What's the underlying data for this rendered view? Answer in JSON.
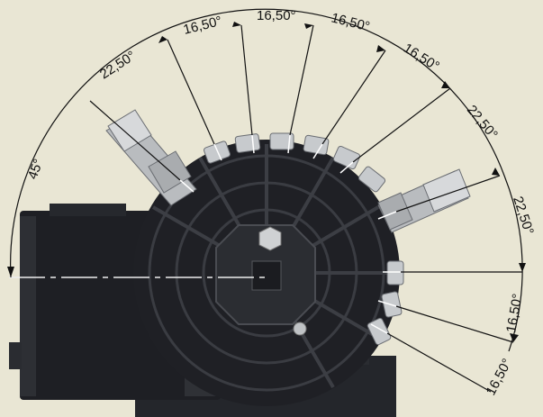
{
  "colors": {
    "background": "#e9e6d4",
    "body_dark": "#1e1f24",
    "body_mid": "#2b2d33",
    "metal": "#c9cccf",
    "line": "#111111"
  },
  "dimensions": [
    {
      "id": "d45",
      "label": "45°"
    },
    {
      "id": "d2250a",
      "label": "22,50°"
    },
    {
      "id": "d1650a",
      "label": "16,50°"
    },
    {
      "id": "d1650b",
      "label": "16,50°"
    },
    {
      "id": "d1650c",
      "label": "16,50°"
    },
    {
      "id": "d1650d",
      "label": "16,50°"
    },
    {
      "id": "d2250b",
      "label": "22,50°"
    },
    {
      "id": "d2250c",
      "label": "22,50°"
    },
    {
      "id": "d1650e",
      "label": "16,50°"
    },
    {
      "id": "d1650f",
      "label": "16,50°"
    }
  ]
}
